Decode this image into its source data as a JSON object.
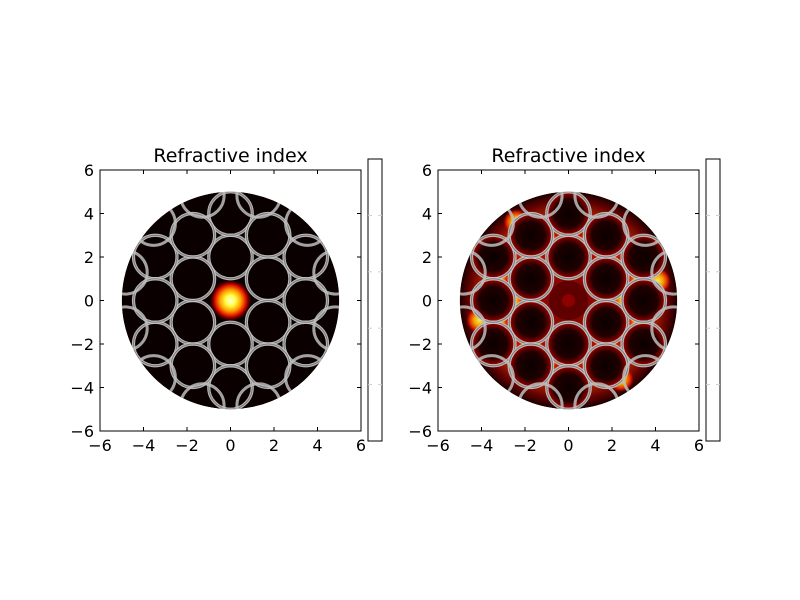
{
  "chart_data": [
    {
      "type": "heatmap",
      "title": "Refractive index",
      "xlabel": "",
      "ylabel": "",
      "xlim": [
        -6,
        6
      ],
      "ylim": [
        -6,
        6
      ],
      "xticks": [
        "−6",
        "−4",
        "−2",
        "0",
        "2",
        "4",
        "6"
      ],
      "yticks": [
        "−6",
        "−4",
        "−2",
        "0",
        "2",
        "4",
        "6"
      ],
      "xtick_values": [
        -6,
        -4,
        -2,
        0,
        2,
        4,
        6
      ],
      "ytick_values": [
        -6,
        -4,
        -2,
        0,
        2,
        4,
        6
      ],
      "colormap": "hot",
      "fiber_radius": 5,
      "hole_radius": 1.0,
      "hole_centers": [
        [
          0,
          2
        ],
        [
          1.73,
          1
        ],
        [
          1.73,
          -1
        ],
        [
          0,
          -2
        ],
        [
          -1.73,
          -1
        ],
        [
          -1.73,
          1
        ],
        [
          0,
          4
        ],
        [
          3.46,
          2
        ],
        [
          3.46,
          -2
        ],
        [
          0,
          -4
        ],
        [
          -3.46,
          -2
        ],
        [
          -3.46,
          2
        ],
        [
          1.73,
          3
        ],
        [
          3.46,
          0
        ],
        [
          1.73,
          -3
        ],
        [
          -1.73,
          -3
        ],
        [
          -3.46,
          0
        ],
        [
          -1.73,
          3
        ]
      ],
      "field": {
        "mode": "core",
        "center": [
          0,
          0
        ],
        "width": 0.45
      },
      "colorbar": true,
      "grid": false
    },
    {
      "type": "heatmap",
      "title": "Refractive index",
      "xlabel": "",
      "ylabel": "",
      "xlim": [
        -6,
        6
      ],
      "ylim": [
        -6,
        6
      ],
      "xticks": [
        "−6",
        "−4",
        "−2",
        "0",
        "2",
        "4",
        "6"
      ],
      "yticks": [
        "−6",
        "−4",
        "−2",
        "0",
        "2",
        "4",
        "6"
      ],
      "xtick_values": [
        -6,
        -4,
        -2,
        0,
        2,
        4,
        6
      ],
      "ytick_values": [
        -6,
        -4,
        -2,
        0,
        2,
        4,
        6
      ],
      "colormap": "hot",
      "fiber_radius": 5,
      "hole_radius": 1.0,
      "hole_centers": [
        [
          0,
          2
        ],
        [
          1.73,
          1
        ],
        [
          1.73,
          -1
        ],
        [
          0,
          -2
        ],
        [
          -1.73,
          -1
        ],
        [
          -1.73,
          1
        ],
        [
          0,
          4
        ],
        [
          3.46,
          2
        ],
        [
          3.46,
          -2
        ],
        [
          0,
          -4
        ],
        [
          -3.46,
          -2
        ],
        [
          -3.46,
          2
        ],
        [
          1.73,
          3
        ],
        [
          3.46,
          0
        ],
        [
          1.73,
          -3
        ],
        [
          -1.73,
          -3
        ],
        [
          -3.46,
          0
        ],
        [
          -1.73,
          3
        ]
      ],
      "field": {
        "mode": "cladding"
      },
      "colorbar": true,
      "grid": false
    }
  ]
}
